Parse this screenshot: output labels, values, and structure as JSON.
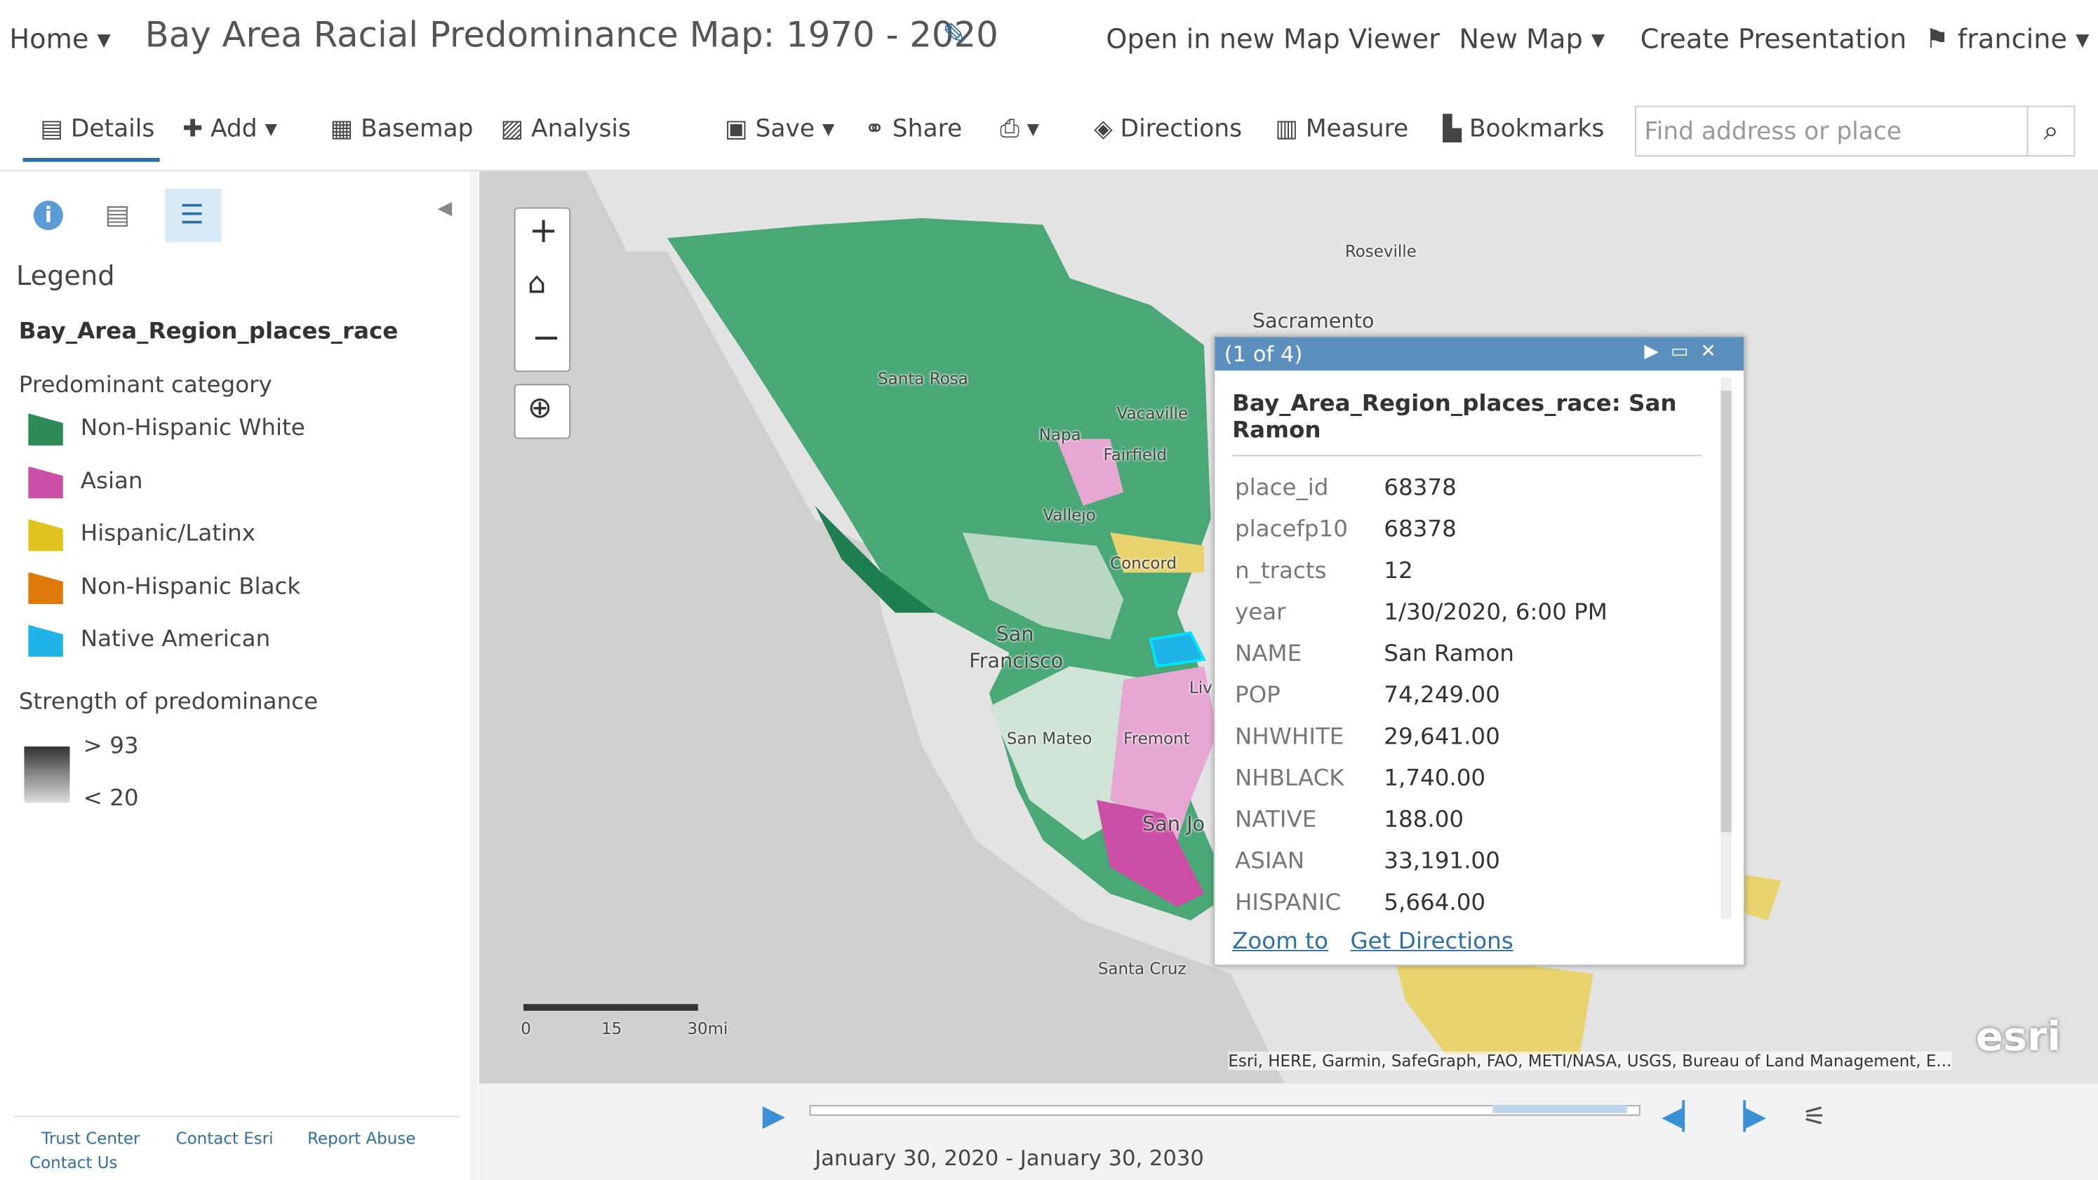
{
  "header": {
    "home": "Home",
    "title": "Bay Area Racial Predominance Map: 1970 - 2020",
    "links": [
      "Open in new Map Viewer",
      "New Map",
      "Create Presentation"
    ],
    "user": "francine"
  },
  "toolbar": {
    "left": [
      "Details",
      "Add",
      "Basemap",
      "Analysis"
    ],
    "right": [
      "Save",
      "Share",
      "Directions",
      "Measure",
      "Bookmarks"
    ],
    "search_placeholder": "Find address or place"
  },
  "legend": {
    "heading": "Legend",
    "layer": "Bay_Area_Region_places_race",
    "category_title": "Predominant category",
    "categories": [
      {
        "label": "Non-Hispanic White",
        "color": "#2e8b57"
      },
      {
        "label": "Asian",
        "color": "#cc4fa6"
      },
      {
        "label": "Hispanic/Latinx",
        "color": "#e0c31d"
      },
      {
        "label": "Non-Hispanic Black",
        "color": "#dd7a0a"
      },
      {
        "label": "Native American",
        "color": "#1fb3e6"
      }
    ],
    "strength_title": "Strength of predominance",
    "strength_high": "> 93",
    "strength_low": "< 20"
  },
  "map_labels": [
    "Roseville",
    "Sacramento",
    "Santa Rosa",
    "Vacaville",
    "Napa",
    "Fairfield",
    "Vallejo",
    "Concord",
    "San",
    "Francisco",
    "San Mateo",
    "Fremont",
    "San Jo",
    "Liv",
    "Santa Cruz"
  ],
  "scale_bar": {
    "labels": [
      "0",
      "15",
      "30mi"
    ]
  },
  "attribution": "Esri, HERE, Garmin, SafeGraph, FAO, METI/NASA, USGS, Bureau of Land Management, E...",
  "popup": {
    "counter": "(1 of 4)",
    "title": "Bay_Area_Region_places_race: San Ramon",
    "fields": [
      [
        "place_id",
        "68378"
      ],
      [
        "placefp10",
        "68378"
      ],
      [
        "n_tracts",
        "12"
      ],
      [
        "year",
        "1/30/2020, 6:00 PM"
      ],
      [
        "NAME",
        "San Ramon"
      ],
      [
        "POP",
        "74,249.00"
      ],
      [
        "NHWHITE",
        "29,641.00"
      ],
      [
        "NHBLACK",
        "1,740.00"
      ],
      [
        "NATIVE",
        "188.00"
      ],
      [
        "ASIAN",
        "33,191.00"
      ],
      [
        "HISPANIC",
        "5,664.00"
      ]
    ],
    "actions": [
      "Zoom to",
      "Get Directions"
    ]
  },
  "footer_links": [
    "Trust Center",
    "Contact Esri",
    "Report Abuse",
    "Contact Us"
  ],
  "timeline": {
    "range_label": "January 30, 2020 - January 30, 2030"
  }
}
